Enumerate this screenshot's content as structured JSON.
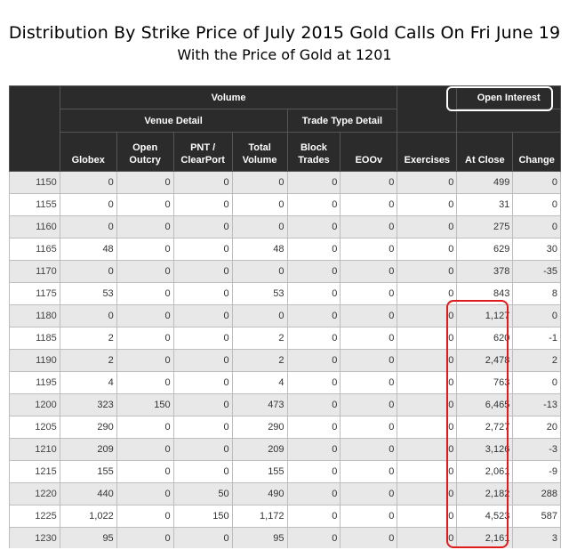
{
  "title": "Distribution By Strike Price of July 2015 Gold Calls On Fri June 19",
  "subtitle": "With the Price of Gold at 1201",
  "header": {
    "volume": "Volume",
    "venue_detail": "Venue Detail",
    "trade_type_detail": "Trade Type Detail",
    "open_interest": "Open Interest",
    "columns": {
      "globex": "Globex",
      "open_outcry_1": "Open",
      "open_outcry_2": "Outcry",
      "pnt_1": "PNT /",
      "pnt_2": "ClearPort",
      "total_1": "Total",
      "total_2": "Volume",
      "block_1": "Block",
      "block_2": "Trades",
      "eoov": "EOOv",
      "exercises": "Exercises",
      "at_close": "At Close",
      "change": "Change"
    }
  },
  "highlight_colors": {
    "open_interest_box": "#ffffff",
    "at_close_box": "#e01b1b"
  },
  "rows": [
    {
      "strike": "1150",
      "globex": "0",
      "outcry": "0",
      "pnt": "0",
      "total": "0",
      "block": "0",
      "eoov": "0",
      "exercises": "0",
      "at_close": "499",
      "change": "0"
    },
    {
      "strike": "1155",
      "globex": "0",
      "outcry": "0",
      "pnt": "0",
      "total": "0",
      "block": "0",
      "eoov": "0",
      "exercises": "0",
      "at_close": "31",
      "change": "0"
    },
    {
      "strike": "1160",
      "globex": "0",
      "outcry": "0",
      "pnt": "0",
      "total": "0",
      "block": "0",
      "eoov": "0",
      "exercises": "0",
      "at_close": "275",
      "change": "0"
    },
    {
      "strike": "1165",
      "globex": "48",
      "outcry": "0",
      "pnt": "0",
      "total": "48",
      "block": "0",
      "eoov": "0",
      "exercises": "0",
      "at_close": "629",
      "change": "30"
    },
    {
      "strike": "1170",
      "globex": "0",
      "outcry": "0",
      "pnt": "0",
      "total": "0",
      "block": "0",
      "eoov": "0",
      "exercises": "0",
      "at_close": "378",
      "change": "-35"
    },
    {
      "strike": "1175",
      "globex": "53",
      "outcry": "0",
      "pnt": "0",
      "total": "53",
      "block": "0",
      "eoov": "0",
      "exercises": "0",
      "at_close": "843",
      "change": "8"
    },
    {
      "strike": "1180",
      "globex": "0",
      "outcry": "0",
      "pnt": "0",
      "total": "0",
      "block": "0",
      "eoov": "0",
      "exercises": "0",
      "at_close": "1,127",
      "change": "0"
    },
    {
      "strike": "1185",
      "globex": "2",
      "outcry": "0",
      "pnt": "0",
      "total": "2",
      "block": "0",
      "eoov": "0",
      "exercises": "0",
      "at_close": "620",
      "change": "-1"
    },
    {
      "strike": "1190",
      "globex": "2",
      "outcry": "0",
      "pnt": "0",
      "total": "2",
      "block": "0",
      "eoov": "0",
      "exercises": "0",
      "at_close": "2,478",
      "change": "2"
    },
    {
      "strike": "1195",
      "globex": "4",
      "outcry": "0",
      "pnt": "0",
      "total": "4",
      "block": "0",
      "eoov": "0",
      "exercises": "0",
      "at_close": "763",
      "change": "0"
    },
    {
      "strike": "1200",
      "globex": "323",
      "outcry": "150",
      "pnt": "0",
      "total": "473",
      "block": "0",
      "eoov": "0",
      "exercises": "0",
      "at_close": "6,465",
      "change": "-13"
    },
    {
      "strike": "1205",
      "globex": "290",
      "outcry": "0",
      "pnt": "0",
      "total": "290",
      "block": "0",
      "eoov": "0",
      "exercises": "0",
      "at_close": "2,727",
      "change": "20"
    },
    {
      "strike": "1210",
      "globex": "209",
      "outcry": "0",
      "pnt": "0",
      "total": "209",
      "block": "0",
      "eoov": "0",
      "exercises": "0",
      "at_close": "3,126",
      "change": "-3"
    },
    {
      "strike": "1215",
      "globex": "155",
      "outcry": "0",
      "pnt": "0",
      "total": "155",
      "block": "0",
      "eoov": "0",
      "exercises": "0",
      "at_close": "2,061",
      "change": "-9"
    },
    {
      "strike": "1220",
      "globex": "440",
      "outcry": "0",
      "pnt": "50",
      "total": "490",
      "block": "0",
      "eoov": "0",
      "exercises": "0",
      "at_close": "2,182",
      "change": "288"
    },
    {
      "strike": "1225",
      "globex": "1,022",
      "outcry": "0",
      "pnt": "150",
      "total": "1,172",
      "block": "0",
      "eoov": "0",
      "exercises": "0",
      "at_close": "4,523",
      "change": "587"
    },
    {
      "strike": "1230",
      "globex": "95",
      "outcry": "0",
      "pnt": "0",
      "total": "95",
      "block": "0",
      "eoov": "0",
      "exercises": "0",
      "at_close": "2,161",
      "change": "3"
    }
  ]
}
